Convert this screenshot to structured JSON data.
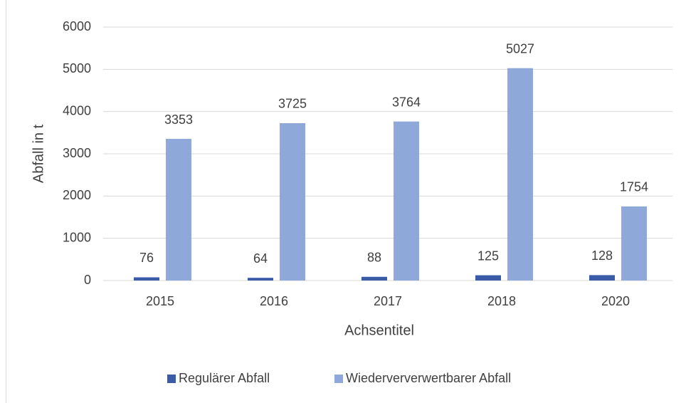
{
  "chart_data": {
    "type": "bar",
    "categories": [
      "2015",
      "2016",
      "2017",
      "2018",
      "2020"
    ],
    "series": [
      {
        "name": "Regulärer Abfall",
        "color": "#3a5ba8",
        "values": [
          76,
          64,
          88,
          125,
          128
        ]
      },
      {
        "name": "Wiederververwertbarer Abfall",
        "color": "#8fa8da",
        "values": [
          3353,
          3725,
          3764,
          5027,
          1754
        ]
      }
    ],
    "x_label": "Achsentitel",
    "y_label": "Abfall in t",
    "ylim": [
      0,
      6000
    ],
    "yticks": [
      0,
      1000,
      2000,
      3000,
      4000,
      5000,
      6000
    ],
    "grid": true,
    "legend": "bottom"
  }
}
